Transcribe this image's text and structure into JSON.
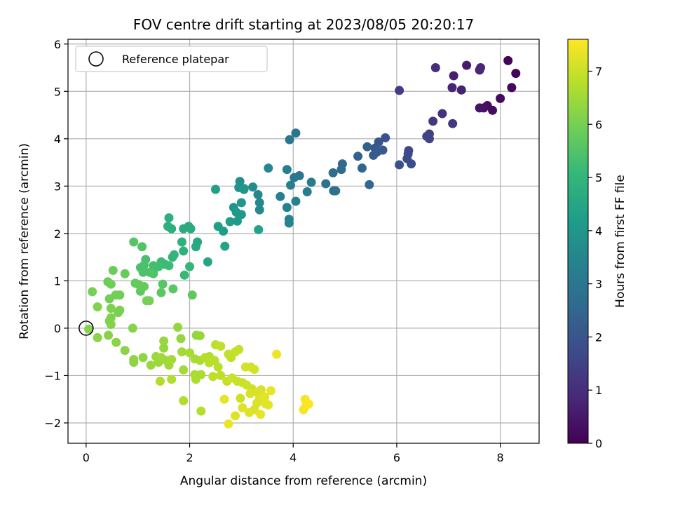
{
  "chart_data": {
    "type": "scatter",
    "title": "FOV centre drift starting at 2023/08/05 20:20:17",
    "xlabel": "Angular distance from reference (arcmin)",
    "ylabel": "Rotation from reference (arcmin)",
    "xlim": [
      -0.35,
      8.75
    ],
    "ylim": [
      -2.43,
      6.1
    ],
    "xticks": [
      0,
      2,
      4,
      6,
      8
    ],
    "yticks": [
      -2,
      -1,
      0,
      1,
      2,
      3,
      4,
      5,
      6
    ],
    "xtick_labels": [
      "0",
      "2",
      "4",
      "6",
      "8"
    ],
    "ytick_labels": [
      "−2",
      "−1",
      "0",
      "1",
      "2",
      "3",
      "4",
      "5",
      "6"
    ],
    "grid": true,
    "legend": {
      "placement": "top-left",
      "entries": [
        "Reference platepar"
      ]
    },
    "reference_point": {
      "x": 0,
      "y": 0,
      "marker": "open-circle",
      "color": "#000000"
    },
    "colorbar": {
      "label": "Hours from first FF file",
      "range": [
        0,
        7.6
      ],
      "ticks": [
        0,
        1,
        2,
        3,
        4,
        5,
        6,
        7
      ],
      "tick_labels": [
        "0",
        "1",
        "2",
        "3",
        "4",
        "5",
        "6",
        "7"
      ],
      "colormap": "viridis",
      "colors": [
        "#440154",
        "#482878",
        "#3e4a89",
        "#31688e",
        "#26828e",
        "#1f9e89",
        "#35b779",
        "#6ece58",
        "#b5de2b",
        "#fde725"
      ]
    },
    "series": [
      {
        "values": [
          [
            8.15,
            5.65,
            0.05
          ],
          [
            8.3,
            5.38,
            0.1
          ],
          [
            8.22,
            5.08,
            0.15
          ],
          [
            8.0,
            4.85,
            0.2
          ],
          [
            7.85,
            4.6,
            0.25
          ],
          [
            7.75,
            4.7,
            0.3
          ],
          [
            7.68,
            4.65,
            0.35
          ],
          [
            7.6,
            4.65,
            0.4
          ],
          [
            7.35,
            5.55,
            0.55
          ],
          [
            7.1,
            5.33,
            0.65
          ],
          [
            7.25,
            5.03,
            0.7
          ],
          [
            7.07,
            5.08,
            0.75
          ],
          [
            7.6,
            5.45,
            0.8
          ],
          [
            7.62,
            5.5,
            0.85
          ],
          [
            6.75,
            5.5,
            1.0
          ],
          [
            6.88,
            4.53,
            1.1
          ],
          [
            7.08,
            4.32,
            1.2
          ],
          [
            6.7,
            4.37,
            1.25
          ],
          [
            6.05,
            5.02,
            1.35
          ],
          [
            6.63,
            4.1,
            1.45
          ],
          [
            6.58,
            4.05,
            1.5
          ],
          [
            6.63,
            4.0,
            1.55
          ],
          [
            6.23,
            3.75,
            1.65
          ],
          [
            6.22,
            3.68,
            1.7
          ],
          [
            6.2,
            3.58,
            1.75
          ],
          [
            6.05,
            3.45,
            1.85
          ],
          [
            6.28,
            3.47,
            1.8
          ],
          [
            5.78,
            4.02,
            1.95
          ],
          [
            5.65,
            3.93,
            2.0
          ],
          [
            5.58,
            3.8,
            2.05
          ],
          [
            5.73,
            3.76,
            2.1
          ],
          [
            5.62,
            3.72,
            2.15
          ],
          [
            5.55,
            3.65,
            2.2
          ],
          [
            5.43,
            3.83,
            2.3
          ],
          [
            5.25,
            3.63,
            2.35
          ],
          [
            5.33,
            3.38,
            2.45
          ],
          [
            5.47,
            3.03,
            2.5
          ],
          [
            4.95,
            3.47,
            2.55
          ],
          [
            4.93,
            3.35,
            2.6
          ],
          [
            4.77,
            3.28,
            2.65
          ],
          [
            4.78,
            2.9,
            2.75
          ],
          [
            4.82,
            2.9,
            2.8
          ],
          [
            4.63,
            3.05,
            2.85
          ],
          [
            4.05,
            4.12,
            2.9
          ],
          [
            3.93,
            3.98,
            2.95
          ],
          [
            4.12,
            3.22,
            3.0
          ],
          [
            4.02,
            3.18,
            3.05
          ],
          [
            4.35,
            3.08,
            3.1
          ],
          [
            4.27,
            2.88,
            3.15
          ],
          [
            3.95,
            3.02,
            3.2
          ],
          [
            3.88,
            3.35,
            3.25
          ],
          [
            3.75,
            2.78,
            3.3
          ],
          [
            3.88,
            2.55,
            3.35
          ],
          [
            3.92,
            2.3,
            3.4
          ],
          [
            3.92,
            2.22,
            3.45
          ],
          [
            4.05,
            2.68,
            3.35
          ],
          [
            3.52,
            3.38,
            3.5
          ],
          [
            3.35,
            2.65,
            3.55
          ],
          [
            3.35,
            2.5,
            3.6
          ],
          [
            3.32,
            2.82,
            3.6
          ],
          [
            3.22,
            2.98,
            3.7
          ],
          [
            3.05,
            2.93,
            3.75
          ],
          [
            2.97,
            3.1,
            3.8
          ],
          [
            2.95,
            2.97,
            3.85
          ],
          [
            2.85,
            2.55,
            3.9
          ],
          [
            3.0,
            2.65,
            3.95
          ],
          [
            3.05,
            2.95,
            4.0
          ],
          [
            2.9,
            2.45,
            4.05
          ],
          [
            3.0,
            2.4,
            4.05
          ],
          [
            2.92,
            2.26,
            4.1
          ],
          [
            2.78,
            2.25,
            4.15
          ],
          [
            2.65,
            2.05,
            4.2
          ],
          [
            2.55,
            2.15,
            4.25
          ],
          [
            2.5,
            2.93,
            4.3
          ],
          [
            3.33,
            2.08,
            4.35
          ],
          [
            2.68,
            1.73,
            4.4
          ],
          [
            2.35,
            1.4,
            4.45
          ],
          [
            2.15,
            1.82,
            4.5
          ],
          [
            2.12,
            1.72,
            4.55
          ],
          [
            1.98,
            2.15,
            4.6
          ],
          [
            2.02,
            2.1,
            4.65
          ],
          [
            1.88,
            2.1,
            4.7
          ],
          [
            1.6,
            2.33,
            4.75
          ],
          [
            1.58,
            2.15,
            4.8
          ],
          [
            1.65,
            2.1,
            4.8
          ],
          [
            1.85,
            1.82,
            4.85
          ],
          [
            1.88,
            1.63,
            4.9
          ],
          [
            1.7,
            1.55,
            4.95
          ],
          [
            1.67,
            1.5,
            5.0
          ],
          [
            2.0,
            1.3,
            5.05
          ],
          [
            1.9,
            1.12,
            5.1
          ],
          [
            1.52,
            1.35,
            5.15
          ],
          [
            1.45,
            1.4,
            5.15
          ],
          [
            1.6,
            1.32,
            5.2
          ],
          [
            1.4,
            1.3,
            5.25
          ],
          [
            1.3,
            1.32,
            5.3
          ],
          [
            1.3,
            1.22,
            5.3
          ],
          [
            1.15,
            1.45,
            5.35
          ],
          [
            1.12,
            1.33,
            5.4
          ],
          [
            1.05,
            1.28,
            5.4
          ],
          [
            1.1,
            1.18,
            5.45
          ],
          [
            1.23,
            1.18,
            5.45
          ],
          [
            1.3,
            1.15,
            5.5
          ],
          [
            1.08,
            1.72,
            5.5
          ],
          [
            0.92,
            1.82,
            5.55
          ],
          [
            1.48,
            0.93,
            5.6
          ],
          [
            1.45,
            0.75,
            5.65
          ],
          [
            1.68,
            0.83,
            5.65
          ],
          [
            2.05,
            0.7,
            5.7
          ],
          [
            1.05,
            0.78,
            5.7
          ],
          [
            1.02,
            0.92,
            5.75
          ],
          [
            0.95,
            0.95,
            5.75
          ],
          [
            1.12,
            0.88,
            5.8
          ],
          [
            0.75,
            1.15,
            5.8
          ],
          [
            0.52,
            1.22,
            5.85
          ],
          [
            0.42,
            0.98,
            5.85
          ],
          [
            0.48,
            0.93,
            5.9
          ],
          [
            0.65,
            0.7,
            5.9
          ],
          [
            0.57,
            0.7,
            5.95
          ],
          [
            0.45,
            0.62,
            5.95
          ],
          [
            0.12,
            0.77,
            6.0
          ],
          [
            1.17,
            0.58,
            6.0
          ],
          [
            1.22,
            0.58,
            6.0
          ],
          [
            0.65,
            0.38,
            6.05
          ],
          [
            0.62,
            0.33,
            6.05
          ],
          [
            0.48,
            0.42,
            6.1
          ],
          [
            0.48,
            0.22,
            6.1
          ],
          [
            0.45,
            0.15,
            6.1
          ],
          [
            0.48,
            0.08,
            6.15
          ],
          [
            0.22,
            0.45,
            6.15
          ],
          [
            0.05,
            -0.02,
            6.2
          ],
          [
            0.9,
            0.0,
            6.2
          ],
          [
            0.43,
            -0.15,
            6.2
          ],
          [
            0.58,
            -0.3,
            6.25
          ],
          [
            0.75,
            -0.47,
            6.25
          ],
          [
            0.22,
            -0.2,
            6.25
          ],
          [
            0.92,
            -0.66,
            6.3
          ],
          [
            0.92,
            -0.72,
            6.3
          ],
          [
            1.1,
            -0.62,
            6.3
          ],
          [
            1.77,
            0.02,
            6.35
          ],
          [
            1.83,
            -0.22,
            6.35
          ],
          [
            2.13,
            -0.15,
            6.35
          ],
          [
            2.2,
            -0.16,
            6.4
          ],
          [
            1.5,
            -0.27,
            6.4
          ],
          [
            1.5,
            -0.42,
            6.4
          ],
          [
            1.35,
            -0.6,
            6.45
          ],
          [
            1.25,
            -0.78,
            6.45
          ],
          [
            1.4,
            -0.72,
            6.45
          ],
          [
            1.45,
            -0.62,
            6.5
          ],
          [
            1.55,
            -0.68,
            6.5
          ],
          [
            1.6,
            -0.78,
            6.5
          ],
          [
            1.65,
            -0.66,
            6.55
          ],
          [
            1.85,
            -0.5,
            6.55
          ],
          [
            1.88,
            -0.88,
            6.55
          ],
          [
            2.0,
            -0.52,
            6.6
          ],
          [
            2.1,
            -0.65,
            6.6
          ],
          [
            2.2,
            -0.68,
            6.6
          ],
          [
            2.1,
            -0.98,
            6.65
          ],
          [
            2.12,
            -1.08,
            6.65
          ],
          [
            2.22,
            -0.98,
            6.65
          ],
          [
            1.43,
            -1.12,
            6.7
          ],
          [
            1.65,
            -1.08,
            6.7
          ],
          [
            1.88,
            -1.53,
            6.7
          ],
          [
            2.22,
            -1.75,
            6.75
          ],
          [
            2.3,
            -0.62,
            6.75
          ],
          [
            2.38,
            -0.6,
            6.75
          ],
          [
            2.38,
            -0.73,
            6.8
          ],
          [
            2.48,
            -0.68,
            6.8
          ],
          [
            2.55,
            -0.82,
            6.8
          ],
          [
            2.45,
            -1.02,
            6.85
          ],
          [
            2.6,
            -1.0,
            6.85
          ],
          [
            2.5,
            -0.35,
            6.85
          ],
          [
            2.6,
            -0.38,
            6.9
          ],
          [
            2.75,
            -0.55,
            6.9
          ],
          [
            2.8,
            -0.62,
            6.9
          ],
          [
            2.88,
            -0.5,
            6.95
          ],
          [
            2.95,
            -0.45,
            6.95
          ],
          [
            2.72,
            -1.12,
            6.95
          ],
          [
            2.82,
            -1.05,
            7.0
          ],
          [
            2.92,
            -1.12,
            7.0
          ],
          [
            3.02,
            -1.15,
            7.0
          ],
          [
            2.98,
            -1.48,
            7.05
          ],
          [
            3.1,
            -1.2,
            7.05
          ],
          [
            3.2,
            -1.28,
            7.05
          ],
          [
            3.08,
            -0.82,
            7.1
          ],
          [
            3.18,
            -0.82,
            7.1
          ],
          [
            3.25,
            -0.87,
            7.1
          ],
          [
            3.17,
            -1.38,
            7.15
          ],
          [
            3.3,
            -1.35,
            7.15
          ],
          [
            3.38,
            -1.3,
            7.15
          ],
          [
            3.35,
            -1.48,
            7.2
          ],
          [
            3.3,
            -1.58,
            7.2
          ],
          [
            3.25,
            -1.72,
            7.2
          ],
          [
            3.15,
            -1.78,
            7.25
          ],
          [
            3.02,
            -1.68,
            7.25
          ],
          [
            2.88,
            -1.85,
            7.25
          ],
          [
            3.45,
            -1.45,
            7.3
          ],
          [
            3.52,
            -1.62,
            7.3
          ],
          [
            3.47,
            -1.6,
            7.3
          ],
          [
            3.37,
            -1.82,
            7.35
          ],
          [
            3.57,
            -1.32,
            7.35
          ],
          [
            2.67,
            -1.5,
            7.35
          ],
          [
            2.75,
            -2.02,
            7.4
          ],
          [
            3.68,
            -0.55,
            7.4
          ],
          [
            4.23,
            -1.5,
            7.5
          ],
          [
            4.25,
            -1.63,
            7.55
          ],
          [
            4.3,
            -1.6,
            7.55
          ],
          [
            4.2,
            -1.72,
            7.5
          ]
        ]
      }
    ]
  }
}
